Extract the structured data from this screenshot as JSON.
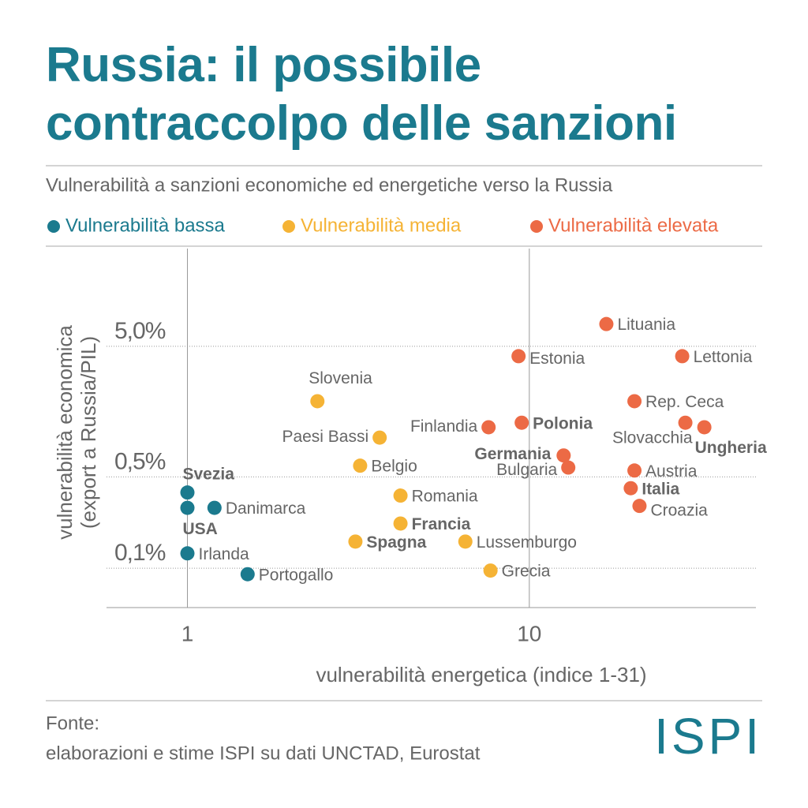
{
  "title": "Russia: il possibile contraccolpo delle sanzioni",
  "subtitle": "Vulnerabilità a sanzioni economiche ed energetiche verso la Russia",
  "source": {
    "label": "Fonte:",
    "text": "elaborazioni e stime ISPI su dati UNCTAD, Eurostat"
  },
  "logo": "ISPI",
  "chart_data": {
    "type": "scatter",
    "x_label": "vulnerabilità energetica (indice 1-31)",
    "y_label": [
      "vulnerabilità economica",
      "(export a Russia/PIL)"
    ],
    "x_log": true,
    "y_log": true,
    "xlim": [
      0.58,
      46
    ],
    "ylim": [
      0.05,
      28
    ],
    "xticks": [
      1,
      10
    ],
    "yticks": [
      {
        "value": 5,
        "label": "5,0%"
      },
      {
        "value": 0.5,
        "label": "0,5%"
      },
      {
        "value": 0.1,
        "label": "0,1%"
      }
    ],
    "grid": true,
    "series": [
      {
        "name": "Vulnerabilità bassa",
        "color": "#1b7a8e",
        "labels": [
          "Svezia",
          "USA",
          "Danimarca",
          "Irlanda",
          "Portogallo"
        ],
        "bold": [
          true,
          true,
          false,
          false,
          false
        ],
        "x": [
          1,
          1,
          1.2,
          1,
          1.5
        ],
        "values": [
          0.38,
          0.29,
          0.29,
          0.13,
          0.09
        ]
      },
      {
        "name": "Vulnerabilità media",
        "color": "#f5b335",
        "labels": [
          "Slovenia",
          "Paesi Bassi",
          "Belgio",
          "Romania",
          "Francia",
          "Spagna",
          "Lussemburgo",
          "Grecia"
        ],
        "bold": [
          false,
          false,
          false,
          false,
          true,
          true,
          false,
          false
        ],
        "x": [
          2.4,
          3.65,
          3.2,
          4.2,
          4.2,
          3.1,
          6.5,
          7.7
        ],
        "values": [
          1.9,
          1.0,
          0.61,
          0.36,
          0.22,
          0.16,
          0.16,
          0.096
        ]
      },
      {
        "name": "Vulnerabilità elevata",
        "color": "#ec6a45",
        "labels": [
          "Lituania",
          "Estonia",
          "Lettonia",
          "Rep. Ceca",
          "Finlandia",
          "Polonia",
          "Slovacchia",
          "Ungheria",
          "Germania",
          "Bulgaria",
          "Austria",
          "Italia",
          "Croazia"
        ],
        "bold": [
          false,
          false,
          false,
          false,
          false,
          true,
          false,
          true,
          true,
          false,
          false,
          true,
          false
        ],
        "x": [
          16.8,
          9.3,
          28,
          20.3,
          7.6,
          9.5,
          28.6,
          32.5,
          12.6,
          13.0,
          20.3,
          19.8,
          21.0
        ],
        "values": [
          7.4,
          4.2,
          4.2,
          1.9,
          1.2,
          1.3,
          1.3,
          1.2,
          0.73,
          0.59,
          0.56,
          0.41,
          0.3
        ]
      }
    ]
  }
}
